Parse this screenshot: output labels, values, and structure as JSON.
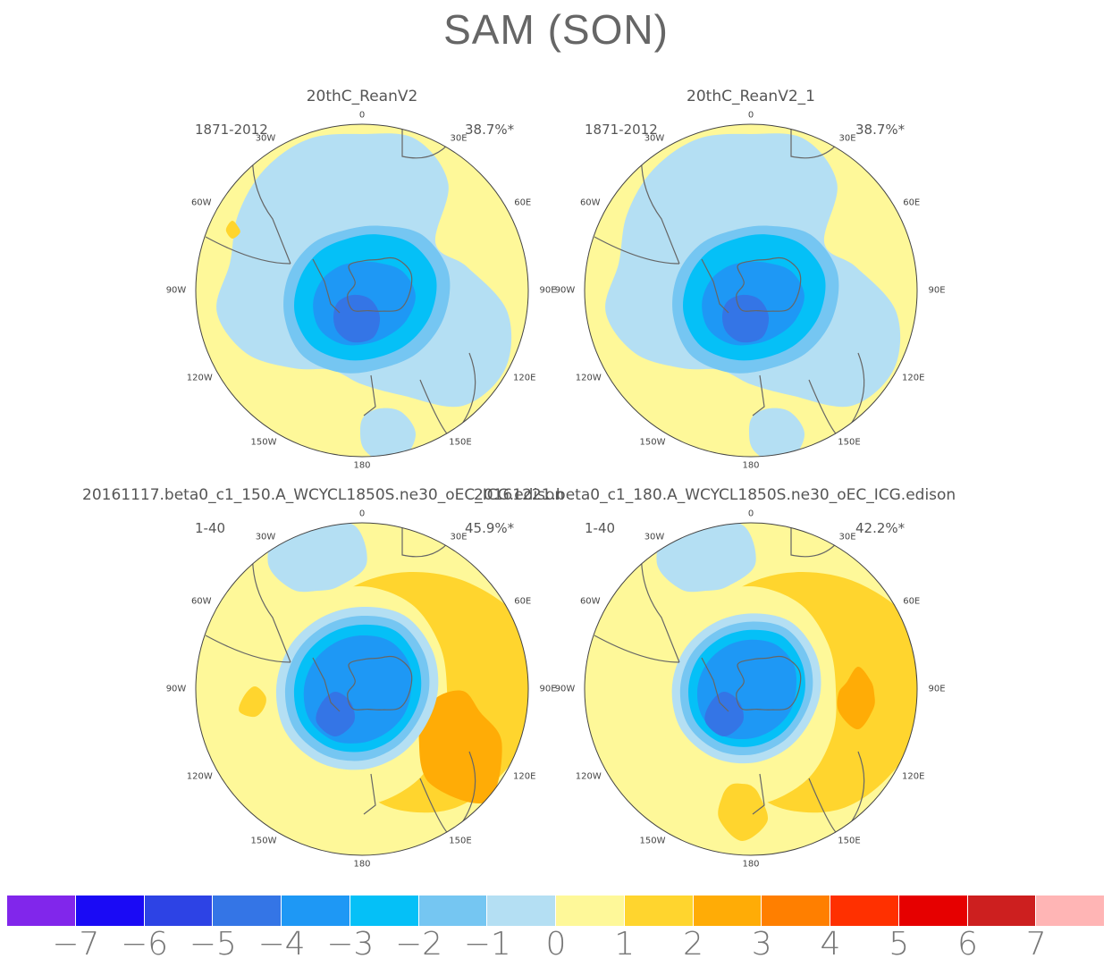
{
  "title": "SAM (SON)",
  "panels": [
    {
      "title": "20thC_ReanV2",
      "period": "1871-2012",
      "variance": "38.7%*"
    },
    {
      "title": "20thC_ReanV2_1",
      "period": "1871-2012",
      "variance": "38.7%*"
    },
    {
      "title": "20161117.beta0_c1_150.A_WCYCL1850S.ne30_oEC_ICG.edison",
      "period": "1-40",
      "variance": "45.9%*"
    },
    {
      "title": "20161221.beta0_c1_180.A_WCYCL1850S.ne30_oEC_ICG.edison",
      "period": "1-40",
      "variance": "42.2%*"
    }
  ],
  "longitude_labels": {
    "lon0": "0",
    "lon30e": "30E",
    "lon60e": "60E",
    "lon90e": "90E",
    "lon120e": "120E",
    "lon150e": "150E",
    "lon180": "180",
    "lon150w": "150W",
    "lon120w": "120W",
    "lon90w": "90W",
    "lon60w": "60W",
    "lon30w": "30W"
  },
  "colorbar": {
    "labels": [
      "−7",
      "−6",
      "−5",
      "−4",
      "−3",
      "−2",
      "−1",
      "0",
      "1",
      "2",
      "3",
      "4",
      "5",
      "6",
      "7"
    ],
    "colors": [
      "#8126eb",
      "#1a0af5",
      "#2d43e5",
      "#3475e6",
      "#1e98f5",
      "#05c0f7",
      "#75c6f2",
      "#b4dff3",
      "#fef899",
      "#ffd52e",
      "#ffac06",
      "#ff7f00",
      "#ff3000",
      "#e60000",
      "#cd1f1f",
      "#ffb5b5"
    ]
  },
  "map_colors": {
    "yellow": "#fef899",
    "light_blue": "#b4dff3",
    "mid_blue": "#75c6f2",
    "cyan": "#05c0f7",
    "blue": "#1e98f5",
    "deep_blue": "#3475e6",
    "gold": "#ffd52e",
    "orange": "#ffac06",
    "coast": "#666666"
  }
}
